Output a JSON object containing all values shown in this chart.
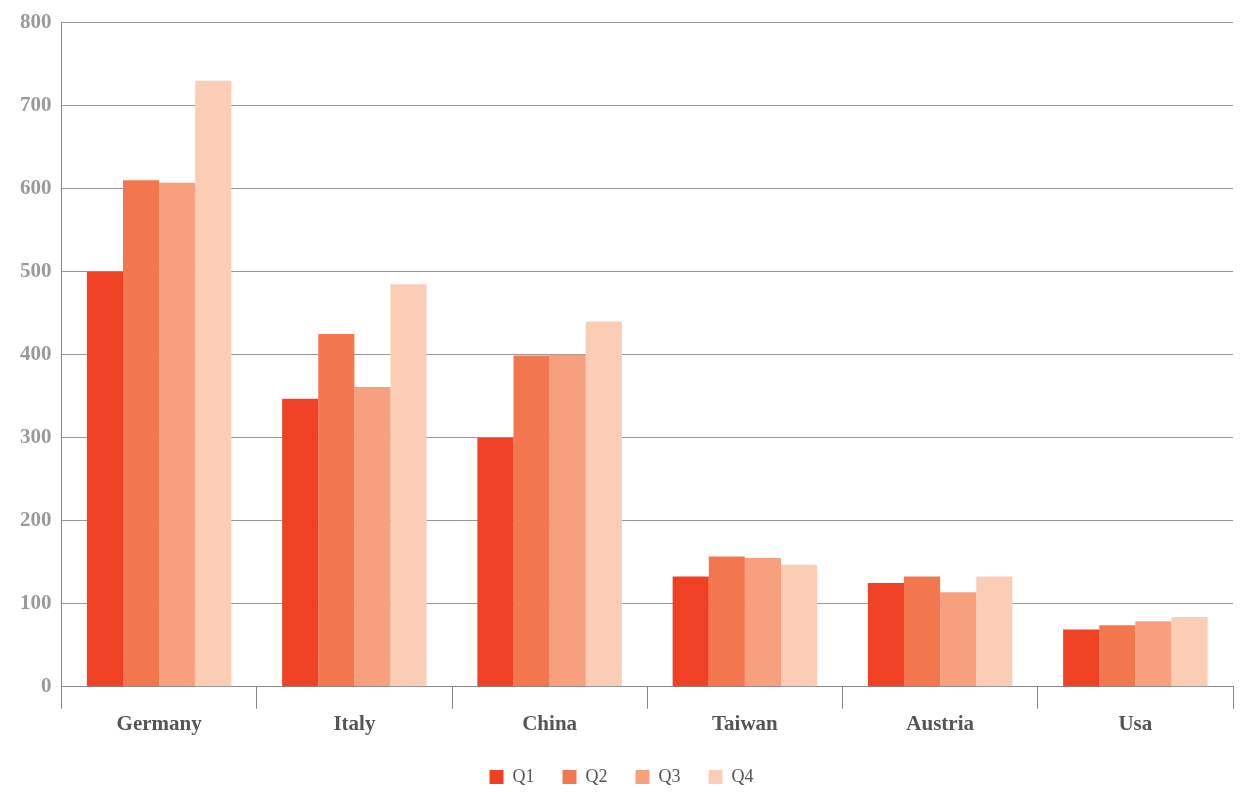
{
  "chart_data": {
    "type": "bar",
    "categories": [
      "Germany",
      "Italy",
      "China",
      "Taiwan",
      "Austria",
      "Usa"
    ],
    "series": [
      {
        "name": "Q1",
        "color": "#ef4123",
        "values": [
          500,
          347,
          300,
          133,
          125,
          69
        ]
      },
      {
        "name": "Q2",
        "color": "#f2764e",
        "values": [
          610,
          425,
          399,
          157,
          133,
          74
        ]
      },
      {
        "name": "Q3",
        "color": "#f6a07e",
        "values": [
          607,
          361,
          400,
          155,
          114,
          79
        ]
      },
      {
        "name": "Q4",
        "color": "#fbcdb4",
        "values": [
          730,
          485,
          440,
          147,
          133,
          84
        ]
      }
    ],
    "ylim": [
      0,
      800
    ],
    "yticks": [
      0,
      100,
      200,
      300,
      400,
      500,
      600,
      700,
      800
    ],
    "grid": "y",
    "legend": "bottom"
  }
}
